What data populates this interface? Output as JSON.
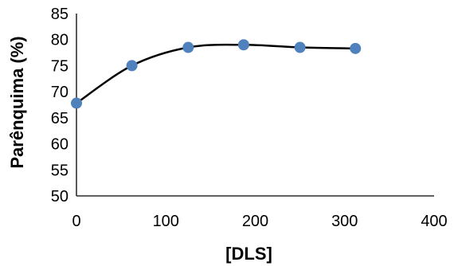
{
  "chart_data": {
    "type": "scatter",
    "smooth_line": true,
    "title": "",
    "xlabel": "[DLS]",
    "ylabel": "Parênquima (%)",
    "xlim": [
      0,
      400
    ],
    "ylim": [
      50,
      85
    ],
    "xticks": [
      0,
      100,
      200,
      300,
      400
    ],
    "yticks": [
      50,
      55,
      60,
      65,
      70,
      75,
      80,
      85
    ],
    "grid": false,
    "legend": "none",
    "series": [
      {
        "x": [
          0,
          62,
          125,
          187,
          250,
          312
        ],
        "y": [
          67.8,
          75.0,
          78.5,
          79.0,
          78.5,
          78.3
        ],
        "marker_color": "#4f81bd",
        "line_color": "#000000"
      }
    ]
  }
}
